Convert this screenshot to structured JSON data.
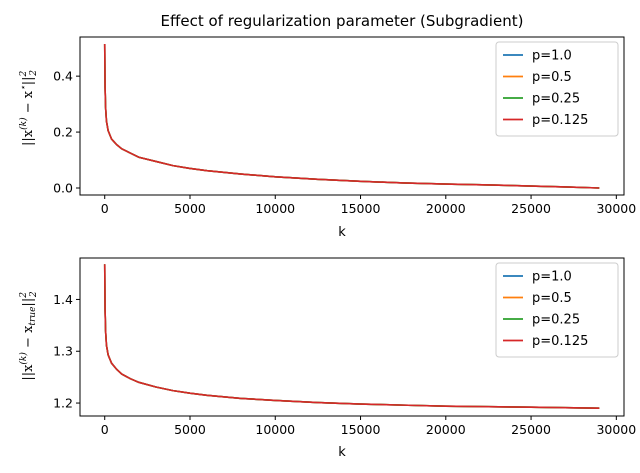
{
  "chart_data": [
    {
      "type": "line",
      "title": "Effect of regularization parameter (Subgradient)",
      "xlabel": "k",
      "ylabel": "||x(k) − x*||²₂",
      "ylabel_parts": {
        "pre": "||x",
        "sup": "(k)",
        "mid": " − x",
        "mid_sup": "⋆",
        "post": "||",
        "post_sup": "2",
        "post_sub": "2"
      },
      "xlim": [
        -1450,
        30450
      ],
      "ylim": [
        -0.025,
        0.54
      ],
      "xticks": [
        0,
        5000,
        10000,
        15000,
        20000,
        25000,
        30000
      ],
      "yticks": [
        0.0,
        0.2,
        0.4
      ],
      "ytick_labels": [
        "0.0",
        "0.2",
        "0.4"
      ],
      "legend_position": "top-right",
      "grid": false,
      "x": [
        0,
        20,
        50,
        100,
        200,
        400,
        700,
        1000,
        1500,
        2000,
        3000,
        4000,
        5000,
        6000,
        8000,
        10000,
        12500,
        15000,
        17500,
        20000,
        22500,
        25000,
        27000,
        29000
      ],
      "series": [
        {
          "name": "p=1.0",
          "color": "#1f77b4",
          "values": [
            0.515,
            0.36,
            0.29,
            0.24,
            0.205,
            0.175,
            0.155,
            0.14,
            0.125,
            0.11,
            0.095,
            0.08,
            0.07,
            0.062,
            0.05,
            0.04,
            0.031,
            0.024,
            0.018,
            0.014,
            0.011,
            0.007,
            0.004,
            0.0
          ]
        },
        {
          "name": "p=0.5",
          "color": "#ff7f0e",
          "values": [
            0.515,
            0.36,
            0.29,
            0.24,
            0.205,
            0.175,
            0.155,
            0.14,
            0.125,
            0.11,
            0.095,
            0.08,
            0.07,
            0.062,
            0.05,
            0.04,
            0.031,
            0.024,
            0.018,
            0.014,
            0.011,
            0.007,
            0.004,
            0.0
          ]
        },
        {
          "name": "p=0.25",
          "color": "#2ca02c",
          "values": [
            0.515,
            0.36,
            0.29,
            0.24,
            0.205,
            0.175,
            0.155,
            0.14,
            0.125,
            0.11,
            0.095,
            0.08,
            0.07,
            0.062,
            0.05,
            0.04,
            0.031,
            0.024,
            0.018,
            0.014,
            0.011,
            0.007,
            0.004,
            0.0
          ]
        },
        {
          "name": "p=0.125",
          "color": "#d62728",
          "values": [
            0.515,
            0.36,
            0.29,
            0.24,
            0.205,
            0.175,
            0.155,
            0.14,
            0.125,
            0.11,
            0.095,
            0.08,
            0.07,
            0.062,
            0.05,
            0.04,
            0.031,
            0.024,
            0.018,
            0.014,
            0.011,
            0.007,
            0.004,
            0.0
          ]
        }
      ]
    },
    {
      "type": "line",
      "title": "",
      "xlabel": "k",
      "ylabel": "||x(k) − xtrue||²₂",
      "ylabel_parts": {
        "pre": "||x",
        "sup": "(k)",
        "mid": " − x",
        "mid_sub": "true",
        "post": "||",
        "post_sup": "2",
        "post_sub": "2"
      },
      "xlim": [
        -1450,
        30450
      ],
      "ylim": [
        1.175,
        1.48
      ],
      "xticks": [
        0,
        5000,
        10000,
        15000,
        20000,
        25000,
        30000
      ],
      "yticks": [
        1.2,
        1.3,
        1.4
      ],
      "ytick_labels": [
        "1.2",
        "1.3",
        "1.4"
      ],
      "legend_position": "top-right",
      "grid": false,
      "x": [
        0,
        20,
        50,
        100,
        200,
        400,
        700,
        1000,
        1500,
        2000,
        3000,
        4000,
        5000,
        6000,
        8000,
        10000,
        12500,
        15000,
        17500,
        20000,
        22500,
        25000,
        27000,
        29000
      ],
      "series": [
        {
          "name": "p=1.0",
          "color": "#1f77b4",
          "values": [
            1.468,
            1.38,
            1.34,
            1.312,
            1.293,
            1.277,
            1.265,
            1.256,
            1.247,
            1.24,
            1.231,
            1.224,
            1.219,
            1.215,
            1.209,
            1.205,
            1.201,
            1.198,
            1.196,
            1.194,
            1.193,
            1.192,
            1.191,
            1.19
          ]
        },
        {
          "name": "p=0.5",
          "color": "#ff7f0e",
          "values": [
            1.468,
            1.38,
            1.34,
            1.312,
            1.293,
            1.277,
            1.265,
            1.256,
            1.247,
            1.24,
            1.231,
            1.224,
            1.219,
            1.215,
            1.209,
            1.205,
            1.201,
            1.198,
            1.196,
            1.194,
            1.193,
            1.192,
            1.191,
            1.19
          ]
        },
        {
          "name": "p=0.25",
          "color": "#2ca02c",
          "values": [
            1.468,
            1.38,
            1.34,
            1.312,
            1.293,
            1.277,
            1.265,
            1.256,
            1.247,
            1.24,
            1.231,
            1.224,
            1.219,
            1.215,
            1.209,
            1.205,
            1.201,
            1.198,
            1.196,
            1.194,
            1.193,
            1.192,
            1.191,
            1.19
          ]
        },
        {
          "name": "p=0.125",
          "color": "#d62728",
          "values": [
            1.468,
            1.38,
            1.34,
            1.312,
            1.293,
            1.277,
            1.265,
            1.256,
            1.247,
            1.24,
            1.231,
            1.224,
            1.219,
            1.215,
            1.209,
            1.205,
            1.201,
            1.198,
            1.196,
            1.194,
            1.193,
            1.192,
            1.191,
            1.19
          ]
        }
      ]
    }
  ]
}
